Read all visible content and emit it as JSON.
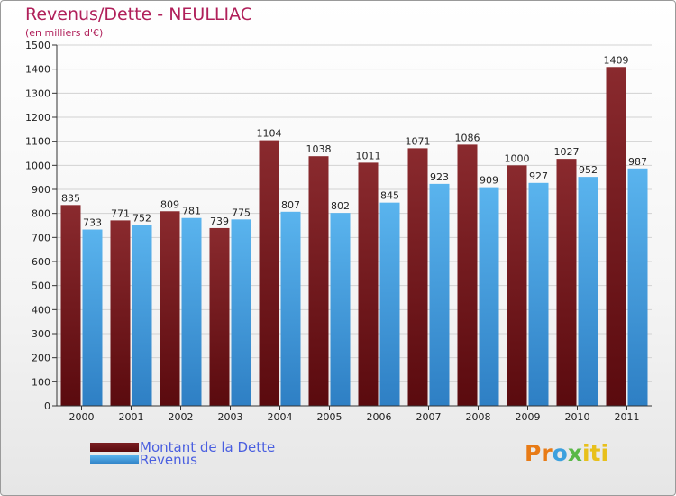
{
  "header": {
    "title": "Revenus/Dette - NEULLIAC",
    "subtitle": "(en milliers d'€)"
  },
  "colors": {
    "title": "#b0205a",
    "dette_top": "#8a2a2e",
    "dette_bottom": "#5a0a0e",
    "revenus_top": "#5ab4ee",
    "revenus_bottom": "#2e7fc4",
    "legend_text": "#4a5fe0"
  },
  "chart_data": {
    "type": "bar",
    "categories": [
      "2000",
      "2001",
      "2002",
      "2003",
      "2004",
      "2005",
      "2006",
      "2007",
      "2008",
      "2009",
      "2010",
      "2011"
    ],
    "series": [
      {
        "name": "Montant de la Dette",
        "values": [
          835,
          771,
          809,
          739,
          1104,
          1038,
          1011,
          1071,
          1086,
          1000,
          1027,
          1409
        ]
      },
      {
        "name": "Revenus",
        "values": [
          733,
          752,
          781,
          775,
          807,
          802,
          845,
          923,
          909,
          927,
          952,
          987
        ]
      }
    ],
    "yticks": [
      0,
      100,
      200,
      300,
      400,
      500,
      600,
      700,
      800,
      900,
      1000,
      1100,
      1200,
      1300,
      1400,
      1500
    ],
    "ylim": [
      0,
      1500
    ],
    "grid": true,
    "legend_position": "bottom-left"
  },
  "legend": [
    {
      "label": "Montant de la Dette"
    },
    {
      "label": "Revenus"
    }
  ],
  "brand": {
    "text": "Proxiti",
    "parts": [
      "Pr",
      "o",
      "x",
      "iti"
    ]
  }
}
